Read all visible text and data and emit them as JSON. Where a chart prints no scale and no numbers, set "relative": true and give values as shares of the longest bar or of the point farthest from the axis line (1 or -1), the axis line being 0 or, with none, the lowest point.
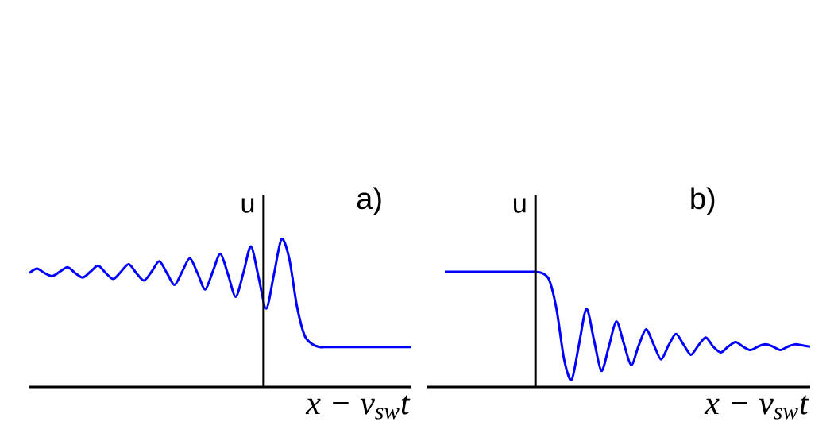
{
  "chart_data": [
    {
      "type": "line",
      "title": "a)",
      "ylabel": "u",
      "xlabel": "x − v$_{sw}$t",
      "relative": true,
      "categories": [
        null,
        null,
        null,
        null,
        null,
        null,
        null,
        null,
        null,
        null,
        null,
        null,
        null,
        null,
        null,
        null,
        null,
        null,
        null,
        null,
        null,
        null,
        null,
        null,
        null,
        null,
        null,
        null,
        null,
        null,
        null,
        null,
        null,
        null,
        null,
        null,
        null,
        null,
        null,
        null,
        null,
        null,
        null,
        null,
        null,
        null,
        null,
        null,
        null,
        null,
        null
      ],
      "series": [
        {
          "color": "#0000ff",
          "values": [
            0.77,
            0.8,
            0.77,
            0.75,
            0.78,
            0.81,
            0.77,
            0.74,
            0.78,
            0.82,
            0.77,
            0.73,
            0.78,
            0.83,
            0.77,
            0.72,
            0.78,
            0.85,
            0.77,
            0.69,
            0.78,
            0.87,
            0.77,
            0.66,
            0.78,
            0.9,
            0.76,
            0.61,
            0.77,
            0.95,
            0.74,
            0.53,
            0.76,
            1,
            0.87,
            0.55,
            0.35,
            0.29,
            0.27,
            0.27,
            0.27,
            0.27,
            0.27,
            0.27,
            0.27,
            0.27,
            0.27,
            0.27,
            0.27,
            0.27,
            0.27
          ]
        }
      ]
    },
    {
      "type": "line",
      "title": "b)",
      "ylabel": "u",
      "xlabel": "x − v$_{sw}$t",
      "relative": true,
      "categories": [
        null,
        null,
        null,
        null,
        null,
        null,
        null,
        null,
        null,
        null,
        null,
        null,
        null,
        null,
        null,
        null,
        null,
        null,
        null,
        null,
        null,
        null,
        null,
        null,
        null,
        null,
        null,
        null,
        null,
        null,
        null,
        null,
        null,
        null,
        null,
        null,
        null,
        null,
        null,
        null,
        null,
        null,
        null,
        null,
        null,
        null,
        null,
        null,
        null,
        null
      ],
      "series": [
        {
          "color": "#0000ff",
          "values": [
            1,
            1,
            1,
            1,
            1,
            1,
            1,
            1,
            1,
            1,
            1,
            1,
            1,
            0.99,
            0.93,
            0.67,
            0.24,
            0.06,
            0.37,
            0.68,
            0.41,
            0.14,
            0.35,
            0.57,
            0.38,
            0.19,
            0.36,
            0.5,
            0.37,
            0.24,
            0.36,
            0.46,
            0.37,
            0.28,
            0.36,
            0.43,
            0.35,
            0.3,
            0.35,
            0.39,
            0.35,
            0.32,
            0.35,
            0.37,
            0.35,
            0.32,
            0.35,
            0.37,
            0.36,
            0.35
          ]
        }
      ]
    }
  ]
}
